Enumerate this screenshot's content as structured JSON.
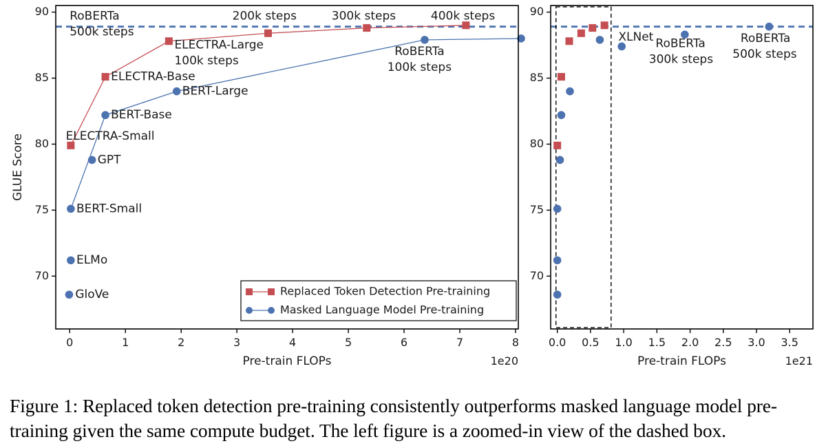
{
  "caption": "Figure 1: Replaced token detection pre-training consistently outperforms masked language model pre-training given the same compute budget. The left figure is a zoomed-in view of the dashed box.",
  "colors": {
    "red": "#c44e52",
    "blue": "#4c72b0",
    "axis": "#000000"
  },
  "chart_data": [
    {
      "type": "line",
      "panel": "left",
      "xlabel": "Pre-train FLOPs",
      "ylabel": "GLUE Score",
      "x_scale_label": "1e20",
      "xlim": [
        -0.25,
        8.05
      ],
      "ylim": [
        66,
        90.5
      ],
      "xticks": [
        0,
        1,
        2,
        3,
        4,
        5,
        6,
        7,
        8
      ],
      "yticks": [
        70,
        75,
        80,
        85,
        90
      ],
      "reference_line": {
        "y": 88.9,
        "style": "dashed",
        "color": "blue"
      },
      "legend": {
        "position": "lower-right",
        "entries": [
          {
            "label": "Replaced Token Detection Pre-training",
            "color": "red",
            "marker": "square"
          },
          {
            "label": "Masked Language Model Pre-training",
            "color": "blue",
            "marker": "circle"
          }
        ]
      },
      "series": [
        {
          "name": "Replaced Token Detection Pre-training",
          "color": "red",
          "marker": "square",
          "points": [
            {
              "x": 0.02,
              "y": 79.9
            },
            {
              "x": 0.64,
              "y": 85.1
            },
            {
              "x": 1.78,
              "y": 87.8
            },
            {
              "x": 3.56,
              "y": 88.4
            },
            {
              "x": 5.33,
              "y": 88.8
            },
            {
              "x": 7.11,
              "y": 89.0
            }
          ]
        },
        {
          "name": "Masked Language Model Pre-training",
          "color": "blue",
          "marker": "circle",
          "points": [
            {
              "x": 0.02,
              "y": 75.1
            },
            {
              "x": 0.64,
              "y": 82.2
            },
            {
              "x": 1.92,
              "y": 84.0
            },
            {
              "x": 6.37,
              "y": 87.9
            },
            {
              "x": 8.1,
              "y": 88.0
            }
          ]
        }
      ],
      "extra_points": [
        {
          "x": 0.4,
          "y": 78.8,
          "color": "blue",
          "marker": "circle"
        },
        {
          "x": 0.02,
          "y": 71.2,
          "color": "blue",
          "marker": "circle"
        },
        {
          "x": -0.01,
          "y": 68.6,
          "color": "blue",
          "marker": "circle"
        }
      ],
      "annotations": [
        {
          "text": "RoBERTa",
          "x": 0.0,
          "y": 89.7
        },
        {
          "text": "500k steps",
          "x": 0.0,
          "y": 88.5
        },
        {
          "text": "200k steps",
          "x": 2.92,
          "y": 89.7
        },
        {
          "text": "300k steps",
          "x": 4.7,
          "y": 89.7
        },
        {
          "text": "400k steps",
          "x": 6.48,
          "y": 89.7
        },
        {
          "text": "ELECTRA-Large",
          "x": 1.88,
          "y": 87.5
        },
        {
          "text": "100k steps",
          "x": 1.88,
          "y": 86.3
        },
        {
          "text": "RoBERTa",
          "x": 5.83,
          "y": 87.0
        },
        {
          "text": "100k steps",
          "x": 5.7,
          "y": 85.8
        },
        {
          "text": "ELECTRA-Base",
          "x": 0.74,
          "y": 85.1
        },
        {
          "text": "BERT-Large",
          "x": 2.02,
          "y": 84.0
        },
        {
          "text": "BERT-Base",
          "x": 0.74,
          "y": 82.2
        },
        {
          "text": "ELECTRA-Small",
          "x": -0.07,
          "y": 80.6
        },
        {
          "text": "GPT",
          "x": 0.5,
          "y": 78.8
        },
        {
          "text": "BERT-Small",
          "x": 0.12,
          "y": 75.1
        },
        {
          "text": "ELMo",
          "x": 0.12,
          "y": 71.2
        },
        {
          "text": "GloVe",
          "x": 0.1,
          "y": 68.6
        }
      ]
    },
    {
      "type": "scatter",
      "panel": "right",
      "xlabel": "Pre-train FLOPs",
      "x_scale_label": "1e21",
      "xlim": [
        -0.1,
        3.85
      ],
      "ylim": [
        66,
        90.5
      ],
      "xticks": [
        0.0,
        0.5,
        1.0,
        1.5,
        2.0,
        2.5,
        3.0,
        3.5
      ],
      "xtick_labels": [
        "0.0",
        "0.5",
        "1.0",
        "1.5",
        "2.0",
        "2.5",
        "3.0",
        "3.5"
      ],
      "yticks": [
        70,
        75,
        80,
        85,
        90
      ],
      "reference_line": {
        "y": 88.9,
        "style": "dashed",
        "color": "blue"
      },
      "zoom_box": {
        "x": [
          -0.02,
          0.81
        ],
        "y": [
          66.1,
          90.4
        ]
      },
      "series": [
        {
          "name": "Replaced Token Detection Pre-training",
          "color": "red",
          "marker": "square",
          "points": [
            {
              "x": 0.0,
              "y": 79.9
            },
            {
              "x": 0.06,
              "y": 85.1
            },
            {
              "x": 0.18,
              "y": 87.8
            },
            {
              "x": 0.36,
              "y": 88.4
            },
            {
              "x": 0.53,
              "y": 88.8
            },
            {
              "x": 0.71,
              "y": 89.0
            }
          ]
        },
        {
          "name": "Masked Language Model Pre-training",
          "color": "blue",
          "marker": "circle",
          "points": [
            {
              "x": 0.0,
              "y": 75.1
            },
            {
              "x": 0.06,
              "y": 82.2
            },
            {
              "x": 0.19,
              "y": 84.0
            },
            {
              "x": 0.64,
              "y": 87.9
            },
            {
              "x": 0.97,
              "y": 87.4
            },
            {
              "x": 1.92,
              "y": 88.3
            },
            {
              "x": 3.19,
              "y": 88.9
            },
            {
              "x": 0.04,
              "y": 78.8
            },
            {
              "x": 0.0,
              "y": 71.2
            },
            {
              "x": 0.0,
              "y": 68.6
            }
          ]
        }
      ],
      "annotations": [
        {
          "text": "XLNet",
          "x": 0.92,
          "y": 88.1
        },
        {
          "text": "RoBERTa",
          "x": 1.48,
          "y": 87.6
        },
        {
          "text": "300k steps",
          "x": 1.38,
          "y": 86.4
        },
        {
          "text": "RoBERTa",
          "x": 2.76,
          "y": 88.0
        },
        {
          "text": "500k steps",
          "x": 2.64,
          "y": 86.8
        }
      ]
    }
  ]
}
